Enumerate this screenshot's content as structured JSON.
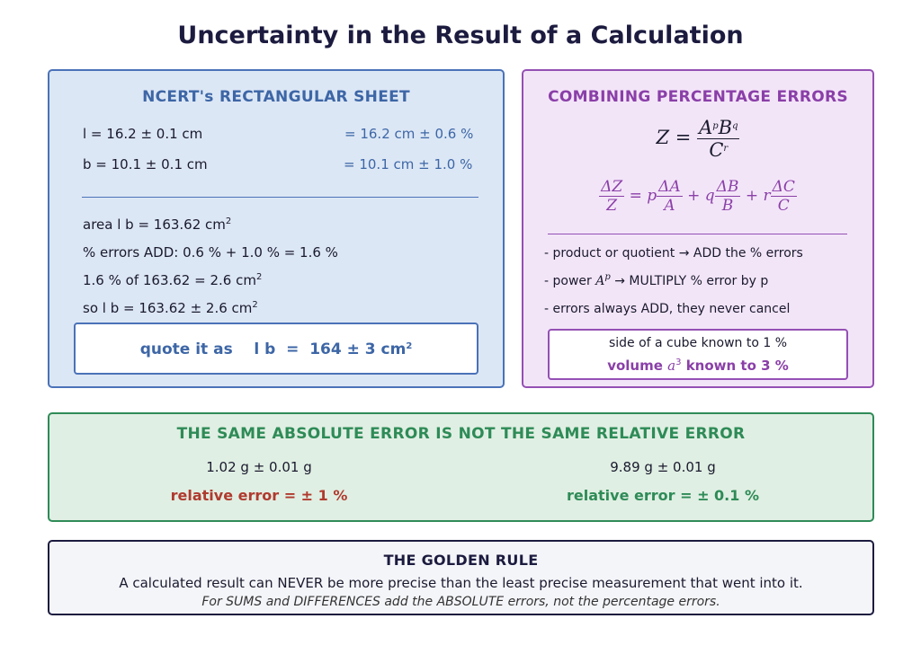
{
  "title": "Uncertainty in the Result of a Calculation",
  "sheet": {
    "heading": "NCERT's RECTANGULAR SHEET",
    "l_line": "l  =  16.2 ± 0.1 cm",
    "l_pct": "= 16.2 cm ± 0.6 %",
    "b_line": "b  =  10.1 ± 0.1 cm",
    "b_pct": "= 10.1 cm ± 1.0 %",
    "area_line": "area  l b  =  163.62 cm",
    "unit_exp": "2",
    "errors_add": "% errors ADD:  0.6 % + 1.0 %  =  1.6 %",
    "pct_of": "1.6 % of 163.62  =  2.6 cm",
    "so_line": "so  l b  =  163.62 ± 2.6 cm",
    "quote": "quote it as    l b  =  164 ± 3 cm"
  },
  "combining": {
    "heading": "COMBINING PERCENTAGE ERRORS",
    "formula": {
      "lhs": "Z =",
      "num_a": "A",
      "exp_p": "p",
      "num_b": "B",
      "exp_q": "q",
      "den_c": "C",
      "exp_r": "r"
    },
    "delta": {
      "dz": "ΔZ",
      "z": "Z",
      "eq": "=",
      "p": "p",
      "da": "ΔA",
      "a": "A",
      "plus_q": "+ q",
      "db": "ΔB",
      "b": "B",
      "plus_r": "+ r",
      "dc": "ΔC",
      "c": "C"
    },
    "rule1": "- product or quotient   →   ADD the % errors",
    "rule2_pre": "- power  ",
    "rule2_base": "A",
    "rule2_exp": "p",
    "rule2_post": "   →   MULTIPLY % error by p",
    "rule3": "- errors always ADD, they never cancel",
    "cube_line1": "side of a cube known to 1 %",
    "cube_pre": "volume ",
    "cube_base": "a",
    "cube_exp": "3",
    "cube_post": " known to 3 %"
  },
  "absolute": {
    "heading": "THE SAME ABSOLUTE ERROR IS NOT THE SAME RELATIVE ERROR",
    "left_value": "1.02 g  ± 0.01 g",
    "left_rel": "relative error  =  ± 1 %",
    "right_value": "9.89 g  ± 0.01 g",
    "right_rel": "relative error  =  ± 0.1 %"
  },
  "golden": {
    "heading": "THE GOLDEN RULE",
    "line1": "A calculated result can NEVER be more precise than the least precise measurement that went into it.",
    "line2": "For SUMS and DIFFERENCES add the ABSOLUTE errors, not the percentage errors."
  },
  "colors": {
    "blue": "#3d66a6",
    "purple": "#8a3fa8",
    "green": "#2e8b57",
    "red": "#b03a2e",
    "navy": "#1c1b3f"
  }
}
